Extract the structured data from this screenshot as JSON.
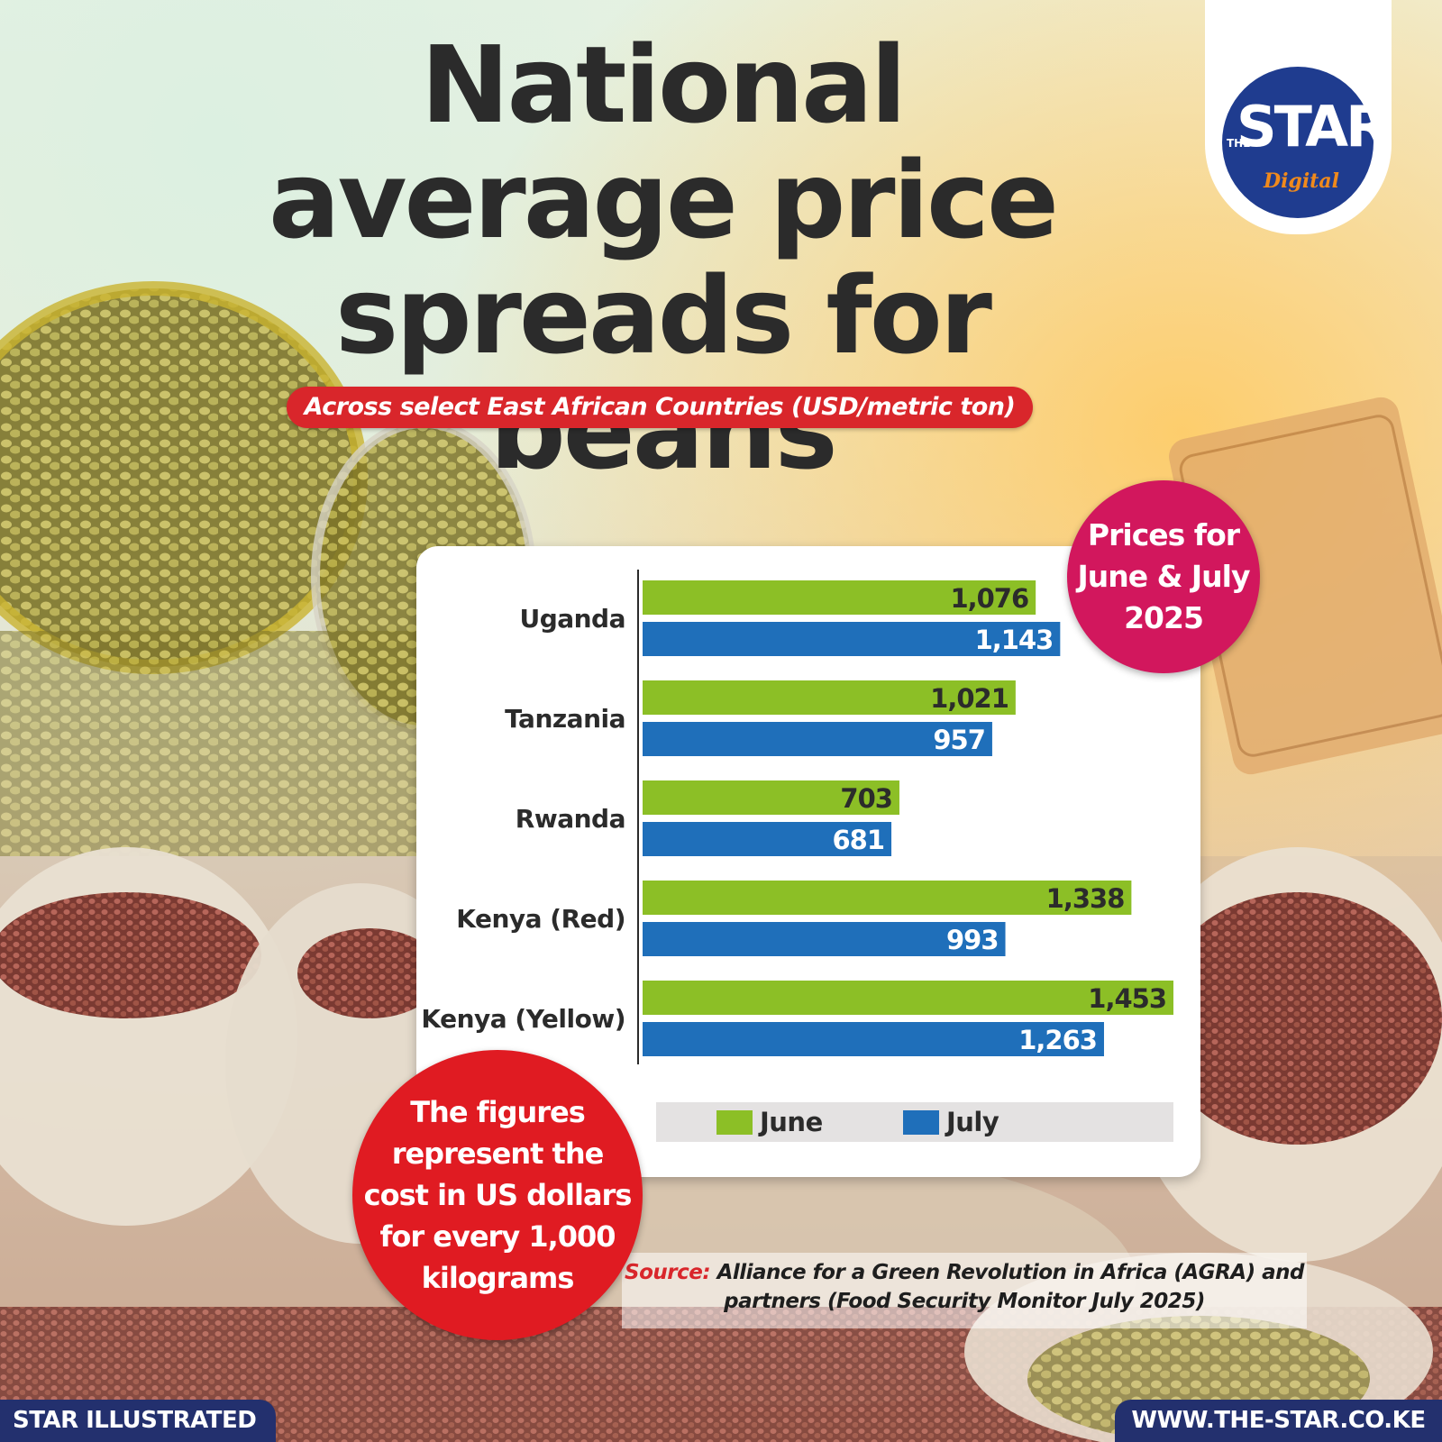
{
  "header": {
    "title": "National average price spreads for beans",
    "subtitle": "Across select East African Countries (USD/metric ton)"
  },
  "logo": {
    "the": "THE",
    "star": "STAR",
    "digital": "Digital"
  },
  "badges": {
    "prices": "Prices for\nJune & July\n2025",
    "note": "The figures\nrepresent the\ncost in US dollars\nfor every 1,000\nkilograms"
  },
  "source": {
    "label": "Source:",
    "text": "Alliance for a Green Revolution in Africa (AGRA) and partners (Food Security Monitor July 2025)"
  },
  "footer": {
    "left": "STAR ILLUSTRATED",
    "right": "WWW.THE-STAR.CO.KE"
  },
  "colors": {
    "june": "#8cbf26",
    "july": "#1f6fba",
    "accent_red": "#d9262b",
    "accent_magenta": "#d2175d",
    "navy": "#23306e",
    "text_dark": "#2b2b2b"
  },
  "chart_data": {
    "type": "bar",
    "orientation": "horizontal",
    "categories": [
      "Uganda",
      "Tanzania",
      "Rwanda",
      "Kenya (Red)",
      "Kenya (Yellow)"
    ],
    "series": [
      {
        "name": "June",
        "values": [
          1076,
          1021,
          703,
          1338,
          1453
        ],
        "labels": [
          "1,076",
          "1,021",
          "703",
          "1,338",
          "1,453"
        ]
      },
      {
        "name": "July",
        "values": [
          1143,
          957,
          681,
          993,
          1263
        ],
        "labels": [
          "1,143",
          "957",
          "681",
          "993",
          "1,263"
        ]
      }
    ],
    "xlim": [
      0,
      1453
    ],
    "grid": false,
    "legend": "bottom"
  }
}
